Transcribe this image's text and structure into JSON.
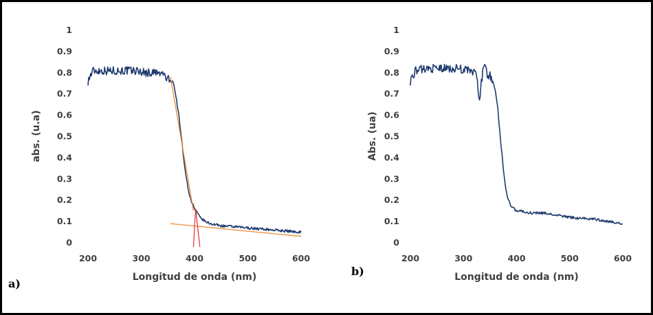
{
  "chart_data": [
    {
      "type": "line",
      "panel_label": "a)",
      "xlabel": "Longitud de onda (nm)",
      "ylabel": "abs. (u.a)",
      "xlim": [
        200,
        600
      ],
      "ylim": [
        0,
        1
      ],
      "xticks": [
        "200",
        "300",
        "400",
        "500",
        "600"
      ],
      "yticks": [
        "0",
        "0.1",
        "0.2",
        "0.3",
        "0.4",
        "0.5",
        "0.6",
        "0.7",
        "0.8",
        "0.9",
        "1"
      ],
      "grid": false,
      "series": [
        {
          "color": "#1f3a6e",
          "x": [
            200,
            205,
            210,
            230,
            250,
            270,
            290,
            310,
            320,
            330,
            335,
            340,
            345,
            350,
            355,
            360,
            365,
            370,
            375,
            380,
            385,
            390,
            395,
            400,
            405,
            410,
            420,
            430,
            450,
            500,
            550,
            600
          ],
          "y": [
            0.76,
            0.79,
            0.81,
            0.81,
            0.81,
            0.81,
            0.81,
            0.8,
            0.8,
            0.8,
            0.79,
            0.8,
            0.78,
            0.77,
            0.76,
            0.76,
            0.69,
            0.61,
            0.5,
            0.39,
            0.3,
            0.23,
            0.19,
            0.16,
            0.14,
            0.12,
            0.1,
            0.09,
            0.08,
            0.07,
            0.06,
            0.05
          ],
          "noise": 0.02
        },
        {
          "color": "#f08a30",
          "x": [
            355,
            398
          ],
          "y": [
            0.78,
            0.15
          ],
          "noise": 0
        },
        {
          "color": "#f08a30",
          "x": [
            355,
            600
          ],
          "y": [
            0.09,
            0.03
          ],
          "noise": 0
        },
        {
          "color": "#e03a3a",
          "x": [
            402,
            410
          ],
          "y": [
            0.16,
            -0.02
          ],
          "noise": 0
        },
        {
          "color": "#e03a3a",
          "x": [
            402,
            398
          ],
          "y": [
            0.16,
            -0.02
          ],
          "noise": 0
        }
      ]
    },
    {
      "type": "line",
      "panel_label": "b)",
      "xlabel": "Longitud de onda (nm)",
      "ylabel": "Abs. (ua)",
      "xlim": [
        200,
        600
      ],
      "ylim": [
        0,
        1
      ],
      "xticks": [
        "200",
        "300",
        "400",
        "500",
        "600"
      ],
      "yticks": [
        "0",
        "0.1",
        "0.2",
        "0.3",
        "0.4",
        "0.5",
        "0.6",
        "0.7",
        "0.8",
        "0.9",
        "1"
      ],
      "grid": false,
      "series": [
        {
          "color": "#1f3a6e",
          "x": [
            200,
            205,
            210,
            230,
            250,
            270,
            290,
            310,
            320,
            325,
            330,
            335,
            340,
            345,
            350,
            355,
            360,
            365,
            370,
            375,
            380,
            385,
            390,
            395,
            400,
            410,
            420,
            450,
            500,
            550,
            600
          ],
          "y": [
            0.76,
            0.79,
            0.81,
            0.82,
            0.82,
            0.82,
            0.82,
            0.81,
            0.8,
            0.79,
            0.66,
            0.78,
            0.85,
            0.79,
            0.79,
            0.76,
            0.72,
            0.62,
            0.48,
            0.35,
            0.25,
            0.2,
            0.17,
            0.16,
            0.15,
            0.15,
            0.14,
            0.14,
            0.12,
            0.11,
            0.09
          ],
          "noise": 0.02
        }
      ]
    }
  ]
}
